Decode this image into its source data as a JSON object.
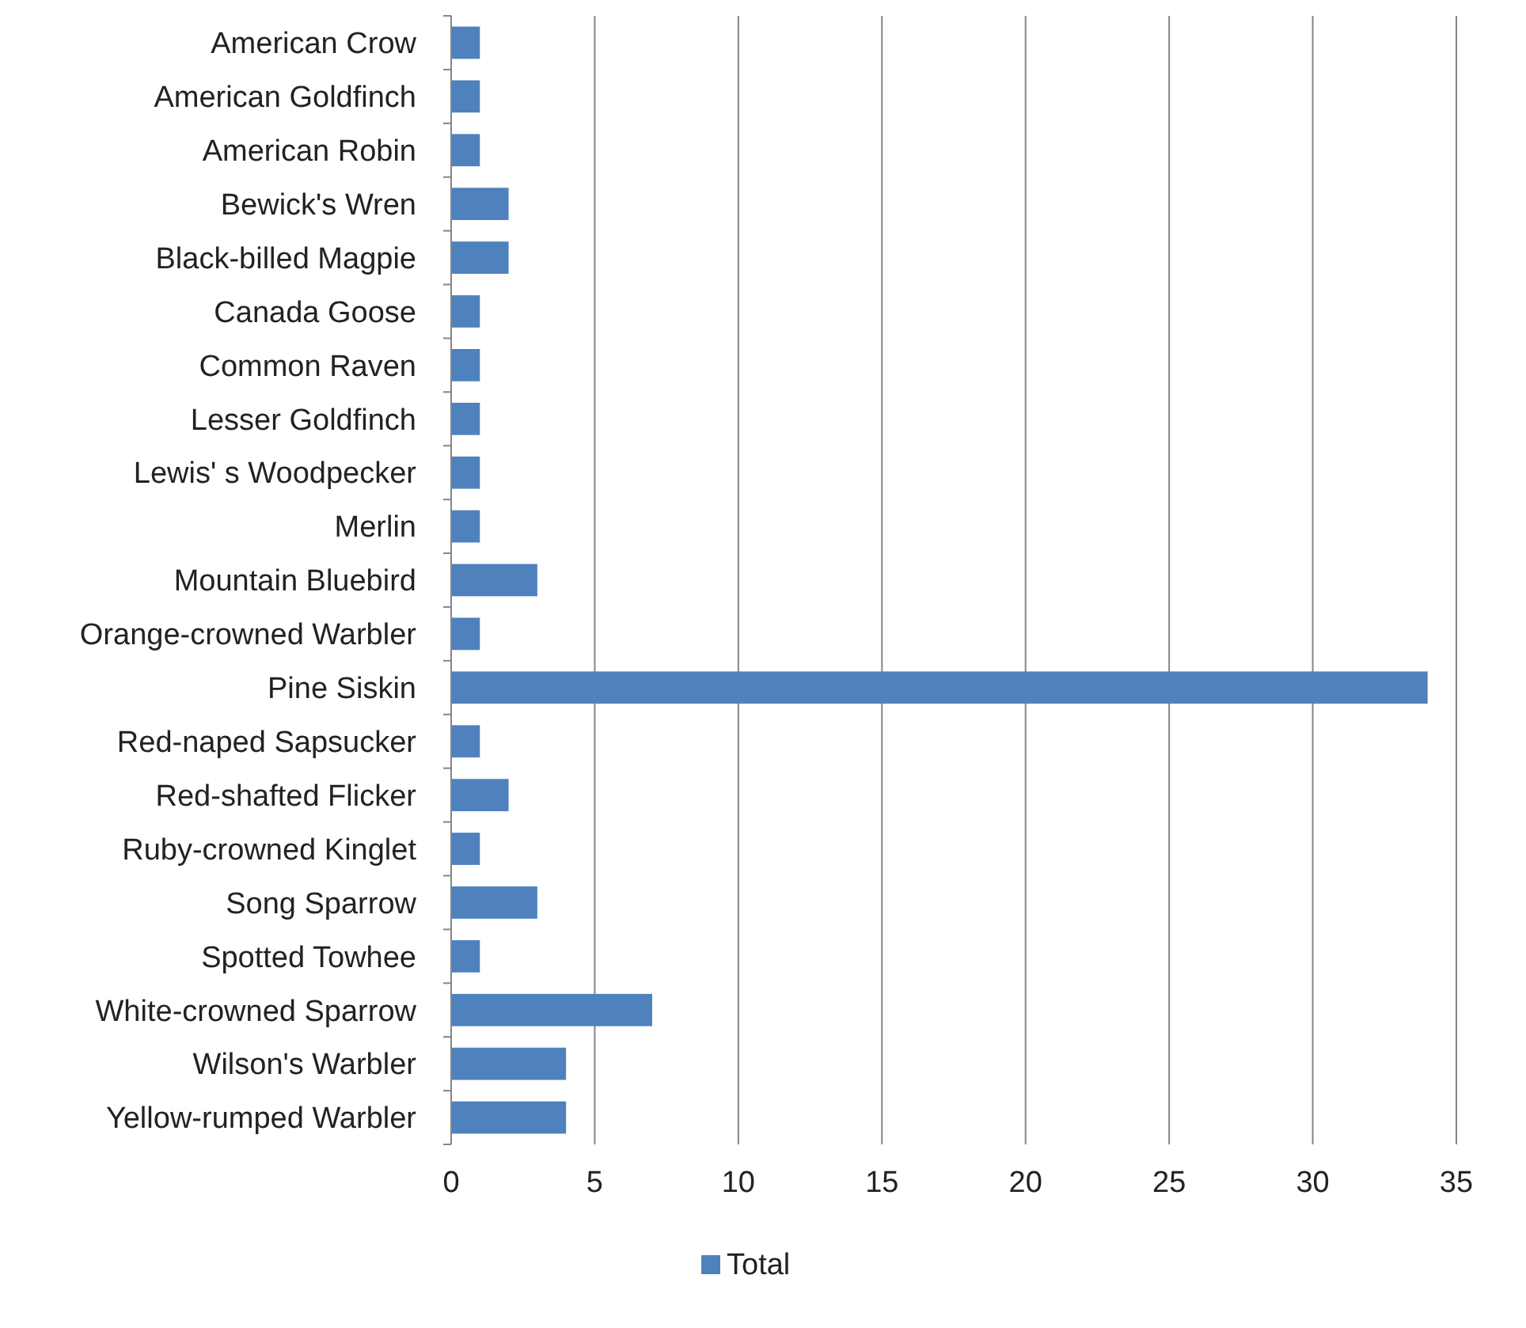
{
  "chart_data": {
    "type": "bar",
    "orientation": "horizontal",
    "categories": [
      "American Crow",
      "American Goldfinch",
      "American Robin",
      "Bewick's Wren",
      "Black-billed Magpie",
      "Canada Goose",
      "Common Raven",
      "Lesser Goldfinch",
      "Lewis' s Woodpecker",
      "Merlin",
      "Mountain Bluebird",
      "Orange-crowned Warbler",
      "Pine Siskin",
      "Red-naped Sapsucker",
      "Red-shafted Flicker",
      "Ruby-crowned Kinglet",
      "Song Sparrow",
      "Spotted Towhee",
      "White-crowned Sparrow",
      "Wilson's Warbler",
      "Yellow-rumped Warbler"
    ],
    "series": [
      {
        "name": "Total",
        "color": "#4f81bd",
        "values": [
          1,
          1,
          1,
          2,
          2,
          1,
          1,
          1,
          1,
          1,
          3,
          1,
          34,
          1,
          2,
          1,
          3,
          1,
          7,
          4,
          4
        ]
      }
    ],
    "xlim": [
      0,
      35
    ],
    "xticks": [
      0,
      5,
      10,
      15,
      20,
      25,
      30,
      35
    ],
    "grid": "x",
    "legend": "bottom"
  }
}
